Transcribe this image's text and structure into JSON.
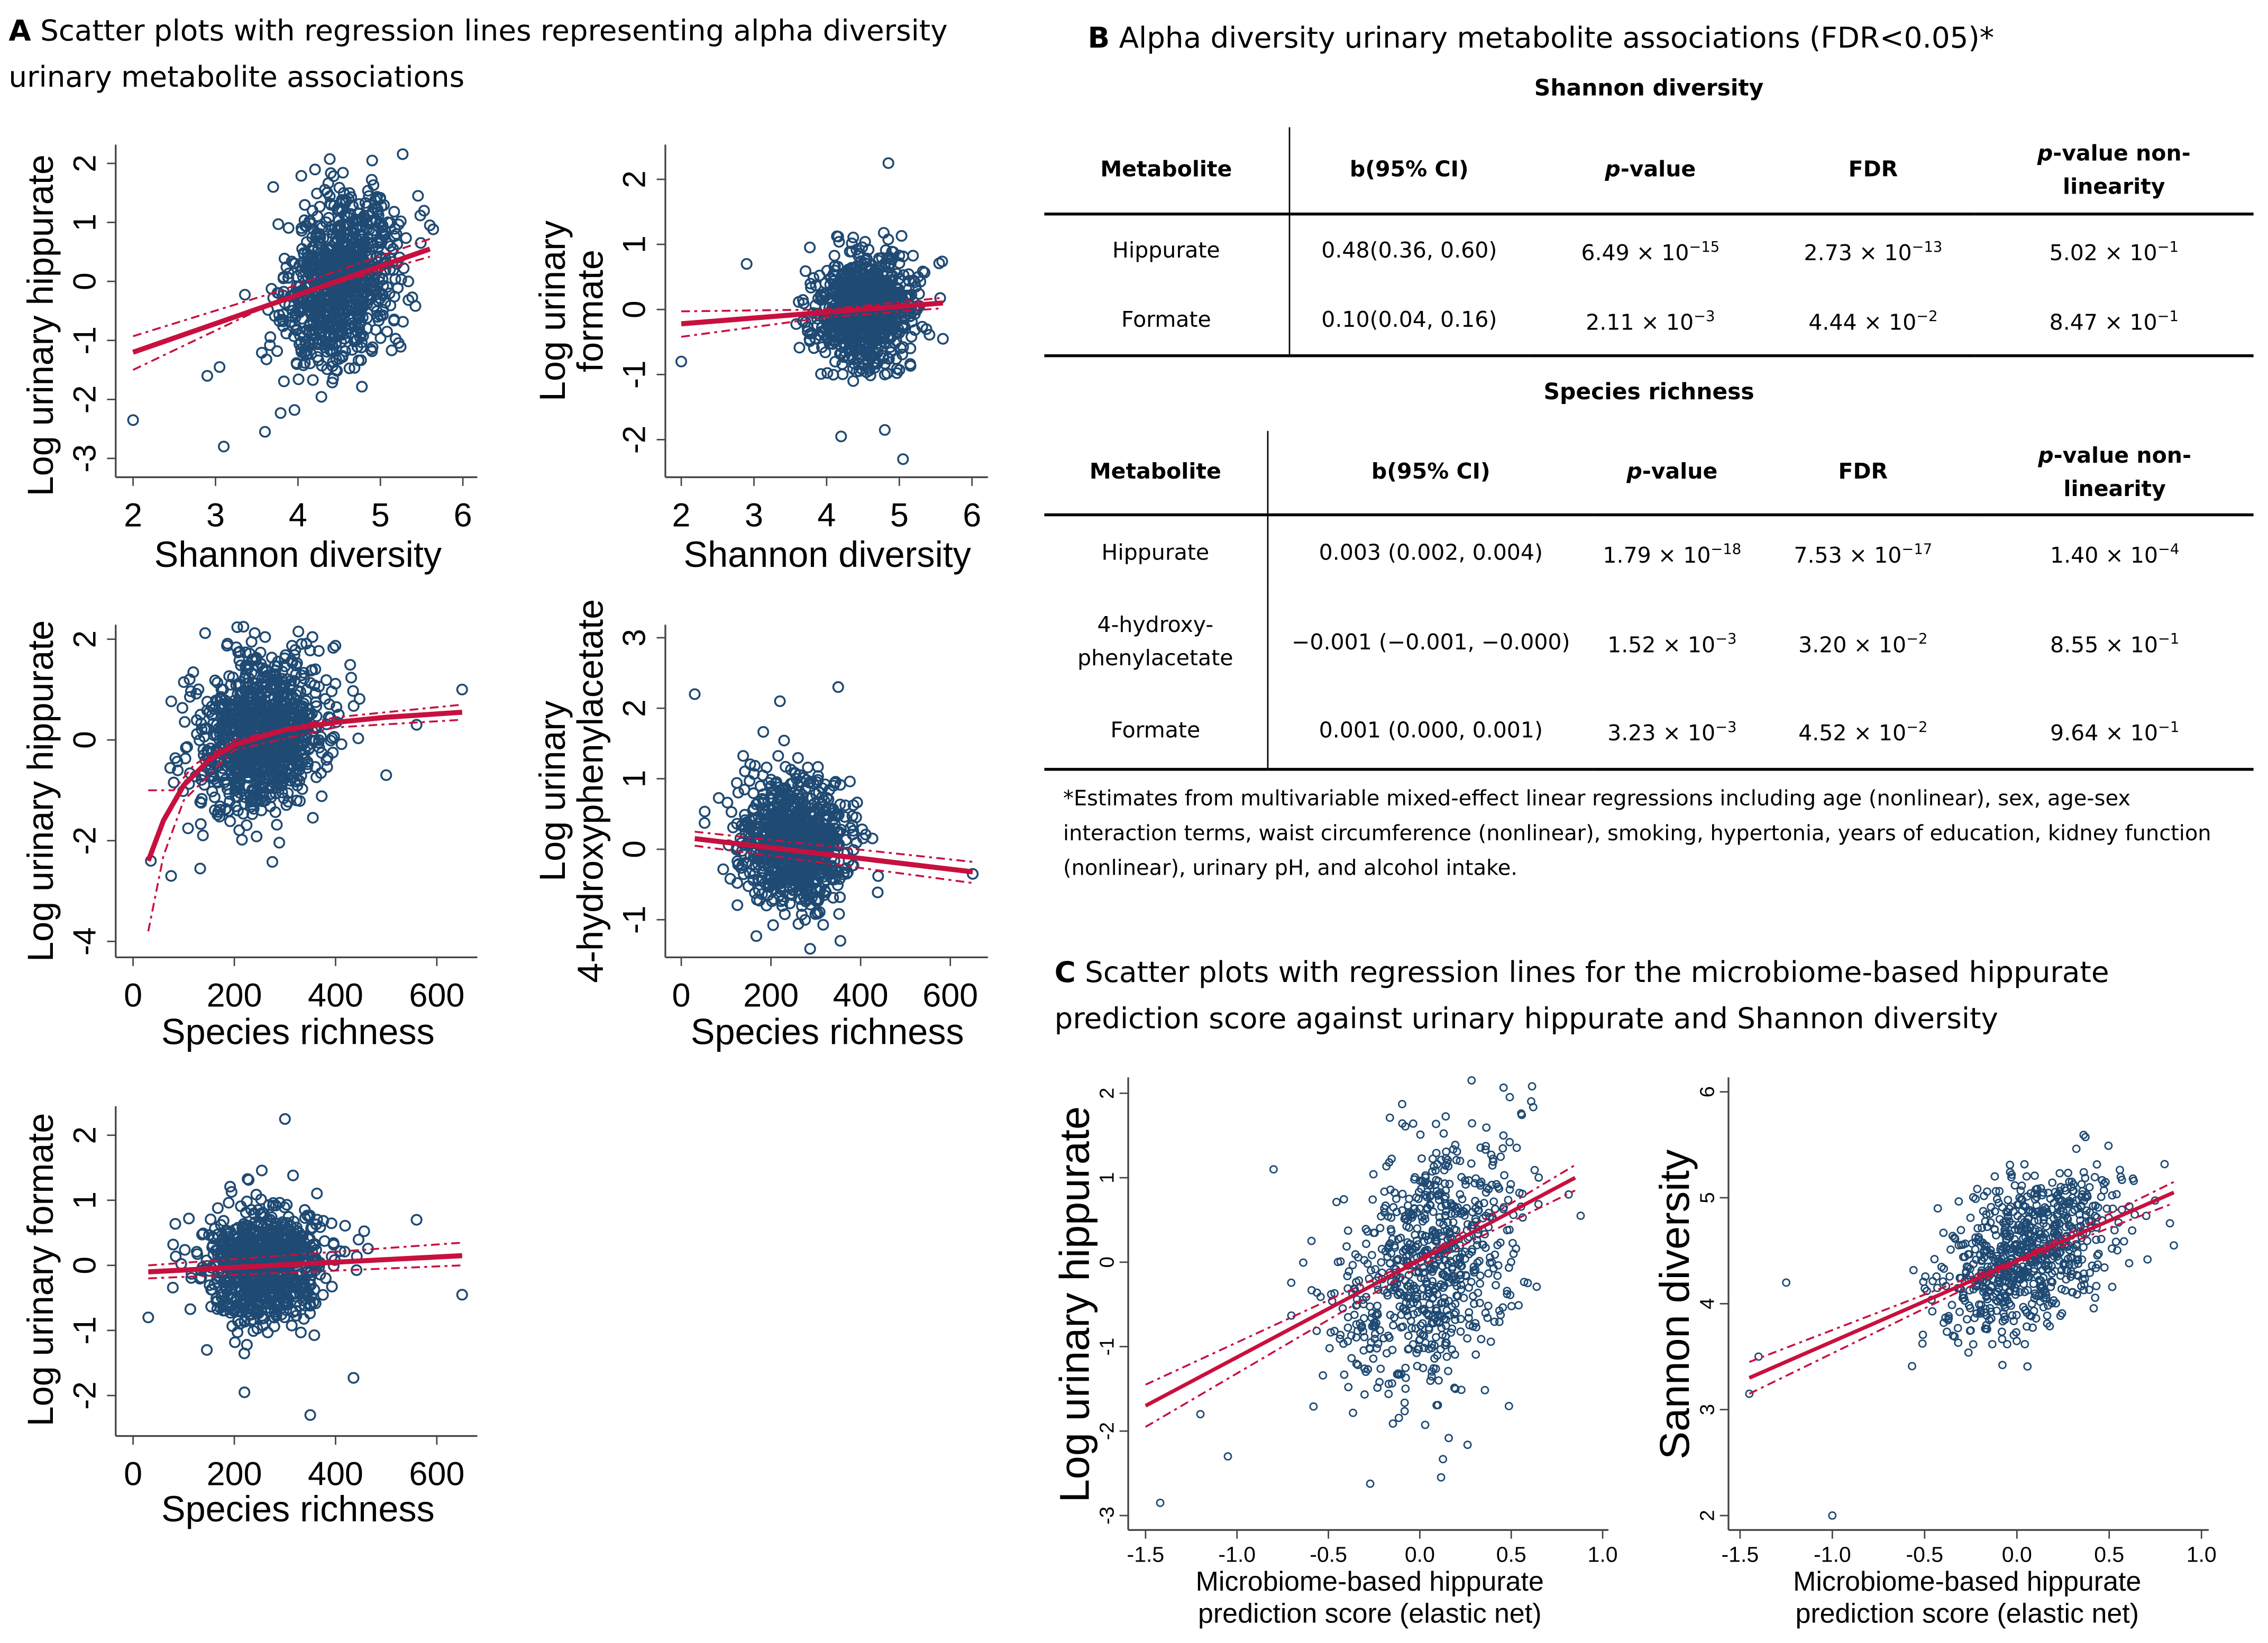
{
  "panel_a": {
    "letter": "A",
    "title_line1": "Scatter plots with regression lines representing alpha diversity",
    "title_line2": "urinary metabolite associations"
  },
  "panel_b": {
    "letter": "B",
    "title": "Alpha diversity urinary metabolite associations (FDR<0.05)*",
    "headers": [
      "Metabolite",
      "b(95% CI)",
      "p-value",
      "FDR",
      "p-value non-linearity"
    ],
    "header_parts": {
      "p_italic": "p",
      "p_rest": "-value",
      "nl_rest": "-value non-",
      "nl_line2": "linearity"
    },
    "tables": [
      {
        "caption": "Shannon diversity",
        "rows": [
          {
            "metabolite": "Hippurate",
            "b": "0.48(0.36, 0.60)",
            "p": {
              "m": "6.49 × 10",
              "e": "−15"
            },
            "fdr": {
              "m": "2.73 × 10",
              "e": "−13"
            },
            "pnl": {
              "m": "5.02 × 10",
              "e": "−1"
            }
          },
          {
            "metabolite": "Formate",
            "b": "0.10(0.04, 0.16)",
            "p": {
              "m": "2.11 × 10",
              "e": "−3"
            },
            "fdr": {
              "m": "4.44 × 10",
              "e": "−2"
            },
            "pnl": {
              "m": "8.47 × 10",
              "e": "−1"
            }
          }
        ]
      },
      {
        "caption": "Species richness",
        "rows": [
          {
            "metabolite": "Hippurate",
            "b": "0.003 (0.002, 0.004)",
            "p": {
              "m": "1.79 × 10",
              "e": "−18"
            },
            "fdr": {
              "m": "7.53 × 10",
              "e": "−17"
            },
            "pnl": {
              "m": "1.40 × 10",
              "e": "−4"
            }
          },
          {
            "metabolite": "4-hydroxy-phenylacetate",
            "metabolite_lines": [
              "4-hydroxy-",
              "phenylacetate"
            ],
            "b": "−0.001 (−0.001, −0.000)",
            "p": {
              "m": "1.52 × 10",
              "e": "−3"
            },
            "fdr": {
              "m": "3.20 × 10",
              "e": "−2"
            },
            "pnl": {
              "m": "8.55 × 10",
              "e": "−1"
            }
          },
          {
            "metabolite": "Formate",
            "b": "0.001 (0.000, 0.001)",
            "p": {
              "m": "3.23 × 10",
              "e": "−3"
            },
            "fdr": {
              "m": "4.52 × 10",
              "e": "−2"
            },
            "pnl": {
              "m": "9.64 × 10",
              "e": "−1"
            }
          }
        ]
      }
    ],
    "footnote": "*Estimates from multivariable mixed-effect linear regressions including age (nonlinear), sex, age-sex interaction terms, waist circumference (nonlinear), smoking, hypertonia, years of education, kidney function (nonlinear), urinary pH, and alcohol intake."
  },
  "panel_c": {
    "letter": "C",
    "title_line1": "Scatter plots with regression lines for the microbiome-based hippurate",
    "title_line2": "prediction score against urinary hippurate and Shannon diversity"
  },
  "colors": {
    "points": "#1f4a73",
    "fit": "#c8103e"
  },
  "chart_data": [
    {
      "id": "a1",
      "type": "scatter",
      "xlabel": [
        "Shannon diversity"
      ],
      "ylabel": [
        "Log urinary hippurate"
      ],
      "xlim": [
        2,
        6
      ],
      "ylim": [
        -3,
        2
      ],
      "xticks": [
        "2",
        "3",
        "4",
        "5",
        "6"
      ],
      "xtick_values": [
        2,
        3,
        4,
        5,
        6
      ],
      "ytick_values": [
        -3,
        -2,
        -1,
        0,
        1,
        2
      ],
      "yticks": [
        "-3",
        "-2",
        "-1",
        "0",
        "1",
        "2"
      ],
      "cloud": {
        "n": 900,
        "center": [
          4.5,
          0.05
        ],
        "sd": [
          0.33,
          0.72
        ],
        "corr": 0.2,
        "seed": 11
      },
      "outliers": [
        [
          2.0,
          -2.35
        ],
        [
          3.1,
          -2.8
        ],
        [
          3.6,
          -2.55
        ],
        [
          2.9,
          -1.6
        ],
        [
          3.05,
          -1.45
        ],
        [
          5.6,
          0.95
        ],
        [
          3.7,
          1.6
        ],
        [
          4.9,
          2.05
        ]
      ],
      "fit": [
        [
          2,
          -1.2
        ],
        [
          5.6,
          0.55
        ]
      ],
      "ci_upper": [
        [
          2,
          -0.93
        ],
        [
          3.8,
          -0.15
        ],
        [
          5.6,
          0.72
        ]
      ],
      "ci_lower": [
        [
          2,
          -1.5
        ],
        [
          3.8,
          -0.3
        ],
        [
          5.6,
          0.42
        ]
      ]
    },
    {
      "id": "a2",
      "type": "scatter",
      "xlabel": [
        "Shannon diversity"
      ],
      "ylabel": [
        "Log urinary",
        "formate"
      ],
      "xlim": [
        2,
        6
      ],
      "ylim": [
        -2.4,
        2.4
      ],
      "xticks": [
        "2",
        "3",
        "4",
        "5",
        "6"
      ],
      "xtick_values": [
        2,
        3,
        4,
        5,
        6
      ],
      "ytick_values": [
        -2,
        -1,
        0,
        1,
        2
      ],
      "yticks": [
        "-2",
        "-1",
        "0",
        "1",
        "2"
      ],
      "cloud": {
        "n": 900,
        "center": [
          4.5,
          0.0
        ],
        "sd": [
          0.32,
          0.4
        ],
        "corr": 0.1,
        "seed": 23
      },
      "outliers": [
        [
          2.0,
          -0.8
        ],
        [
          4.85,
          2.25
        ],
        [
          5.05,
          -2.3
        ],
        [
          4.2,
          -1.95
        ],
        [
          4.8,
          -1.85
        ],
        [
          5.6,
          -0.45
        ],
        [
          2.9,
          0.7
        ]
      ],
      "fit": [
        [
          2,
          -0.22
        ],
        [
          5.6,
          0.1
        ]
      ],
      "ci_upper": [
        [
          2,
          -0.03
        ],
        [
          4,
          0.0
        ],
        [
          5.6,
          0.18
        ]
      ],
      "ci_lower": [
        [
          2,
          -0.42
        ],
        [
          4,
          -0.12
        ],
        [
          5.6,
          0.02
        ]
      ]
    },
    {
      "id": "a3",
      "type": "scatter",
      "xlabel": [
        "Species richness"
      ],
      "ylabel": [
        "Log urinary hippurate"
      ],
      "xlim": [
        0,
        650
      ],
      "ylim": [
        -4,
        2
      ],
      "xticks": [
        "0",
        "200",
        "400",
        "600"
      ],
      "xtick_values": [
        0,
        200,
        400,
        600
      ],
      "ytick_values": [
        -4,
        -2,
        0,
        2
      ],
      "yticks": [
        "-4",
        "-2",
        "0",
        "2"
      ],
      "cloud": {
        "n": 1000,
        "center": [
          255,
          0.1
        ],
        "sd": [
          62,
          0.75
        ],
        "corr": 0.15,
        "seed": 37
      },
      "outliers": [
        [
          35,
          -2.4
        ],
        [
          650,
          1.0
        ],
        [
          75,
          -2.7
        ],
        [
          560,
          0.3
        ],
        [
          500,
          -0.7
        ]
      ],
      "fit": [
        [
          30,
          -2.4
        ],
        [
          60,
          -1.6
        ],
        [
          100,
          -0.9
        ],
        [
          150,
          -0.4
        ],
        [
          200,
          -0.1
        ],
        [
          300,
          0.2
        ],
        [
          400,
          0.35
        ],
        [
          500,
          0.45
        ],
        [
          650,
          0.55
        ]
      ],
      "ci_upper": [
        [
          30,
          -1.0
        ],
        [
          80,
          -1.0
        ],
        [
          120,
          -0.5
        ],
        [
          200,
          0.0
        ],
        [
          400,
          0.45
        ],
        [
          650,
          0.7
        ]
      ],
      "ci_lower": [
        [
          30,
          -3.8
        ],
        [
          60,
          -2.3
        ],
        [
          100,
          -1.2
        ],
        [
          200,
          -0.2
        ],
        [
          400,
          0.25
        ],
        [
          650,
          0.4
        ]
      ]
    },
    {
      "id": "a4",
      "type": "scatter",
      "xlabel": [
        "Species richness"
      ],
      "ylabel": [
        "Log urinary",
        "4-hydroxyphenylacetate"
      ],
      "xlim": [
        0,
        650
      ],
      "ylim": [
        -1.4,
        3.2
      ],
      "xticks": [
        "0",
        "200",
        "400",
        "600"
      ],
      "xtick_values": [
        0,
        200,
        400,
        600
      ],
      "ytick_values": [
        -1,
        0,
        1,
        2,
        3
      ],
      "yticks": [
        "-1",
        "0",
        "1",
        "2",
        "3"
      ],
      "cloud": {
        "n": 900,
        "center": [
          250,
          0.1
        ],
        "sd": [
          58,
          0.45
        ],
        "corr": -0.1,
        "seed": 53
      },
      "outliers": [
        [
          30,
          2.2
        ],
        [
          350,
          2.3
        ],
        [
          220,
          2.1
        ],
        [
          355,
          -1.3
        ],
        [
          650,
          -0.35
        ]
      ],
      "fit": [
        [
          30,
          0.15
        ],
        [
          650,
          -0.32
        ]
      ],
      "ci_upper": [
        [
          30,
          0.25
        ],
        [
          650,
          -0.18
        ]
      ],
      "ci_lower": [
        [
          30,
          0.05
        ],
        [
          650,
          -0.48
        ]
      ]
    },
    {
      "id": "a5",
      "type": "scatter",
      "xlabel": [
        "Species richness"
      ],
      "ylabel": [
        "Log urinary formate"
      ],
      "xlim": [
        0,
        650
      ],
      "ylim": [
        -2.4,
        2.4
      ],
      "xticks": [
        "0",
        "200",
        "400",
        "600"
      ],
      "xtick_values": [
        0,
        200,
        400,
        600
      ],
      "ytick_values": [
        -2,
        -1,
        0,
        1,
        2
      ],
      "yticks": [
        "-2",
        "-1",
        "0",
        "1",
        "2"
      ],
      "cloud": {
        "n": 900,
        "center": [
          260,
          0.0
        ],
        "sd": [
          60,
          0.42
        ],
        "corr": 0.05,
        "seed": 71
      },
      "outliers": [
        [
          30,
          -0.8
        ],
        [
          300,
          2.25
        ],
        [
          350,
          -2.3
        ],
        [
          650,
          -0.45
        ],
        [
          560,
          0.7
        ],
        [
          220,
          -1.95
        ]
      ],
      "fit": [
        [
          30,
          -0.1
        ],
        [
          650,
          0.15
        ]
      ],
      "ci_upper": [
        [
          30,
          0.0
        ],
        [
          650,
          0.35
        ]
      ],
      "ci_lower": [
        [
          30,
          -0.2
        ],
        [
          650,
          0.0
        ]
      ]
    },
    {
      "id": "c1",
      "type": "scatter",
      "xlabel": [
        "Microbiome-based hippurate",
        "prediction score (elastic net)"
      ],
      "ylabel": [
        "Log urinary hippurate"
      ],
      "xlim": [
        -1.5,
        1.0
      ],
      "ylim": [
        -3,
        2
      ],
      "xticks": [
        "-1.5",
        "-1.0",
        "-0.5",
        "0.0",
        "0.5",
        "1.0"
      ],
      "xtick_values": [
        -1.5,
        -1,
        -0.5,
        0,
        0.5,
        1
      ],
      "ytick_values": [
        -3,
        -2,
        -1,
        0,
        1,
        2
      ],
      "yticks": [
        "-3",
        "-2",
        "-1",
        "0",
        "1",
        "2"
      ],
      "cloud": {
        "n": 750,
        "center": [
          0.05,
          0.0
        ],
        "sd": [
          0.24,
          0.75
        ],
        "corr": 0.35,
        "seed": 89
      },
      "outliers": [
        [
          -1.42,
          -2.85
        ],
        [
          -1.2,
          -1.8
        ],
        [
          -1.05,
          -2.3
        ],
        [
          0.88,
          0.55
        ],
        [
          -0.8,
          1.1
        ]
      ],
      "fit": [
        [
          -1.5,
          -1.7
        ],
        [
          0.85,
          1.0
        ]
      ],
      "ci_upper": [
        [
          -1.5,
          -1.45
        ],
        [
          0,
          0.05
        ],
        [
          0.85,
          1.15
        ]
      ],
      "ci_lower": [
        [
          -1.5,
          -1.95
        ],
        [
          0,
          -0.05
        ],
        [
          0.85,
          0.85
        ]
      ]
    },
    {
      "id": "c2",
      "type": "scatter",
      "xlabel": [
        "Microbiome-based hippurate",
        "prediction score (elastic net)"
      ],
      "ylabel": [
        "Sannon diversity"
      ],
      "xlim": [
        -1.5,
        1.0
      ],
      "ylim": [
        2,
        6
      ],
      "xticks": [
        "-1.5",
        "-1.0",
        "-0.5",
        "0.0",
        "0.5",
        "1.0"
      ],
      "xtick_values": [
        -1.5,
        -1,
        -0.5,
        0,
        0.5,
        1
      ],
      "ytick_values": [
        2,
        3,
        4,
        5,
        6
      ],
      "yticks": [
        "2",
        "3",
        "4",
        "5",
        "6"
      ],
      "cloud": {
        "n": 750,
        "center": [
          0.05,
          4.45
        ],
        "sd": [
          0.24,
          0.38
        ],
        "corr": 0.45,
        "seed": 97
      },
      "outliers": [
        [
          -1.0,
          2.0
        ],
        [
          -1.45,
          3.15
        ],
        [
          -1.25,
          4.2
        ],
        [
          0.85,
          4.55
        ],
        [
          -1.4,
          3.5
        ]
      ],
      "fit": [
        [
          -1.45,
          3.3
        ],
        [
          0.85,
          5.05
        ]
      ],
      "ci_upper": [
        [
          -1.45,
          3.45
        ],
        [
          0,
          4.42
        ],
        [
          0.85,
          5.15
        ]
      ],
      "ci_lower": [
        [
          -1.45,
          3.15
        ],
        [
          0,
          4.38
        ],
        [
          0.85,
          4.95
        ]
      ]
    }
  ]
}
